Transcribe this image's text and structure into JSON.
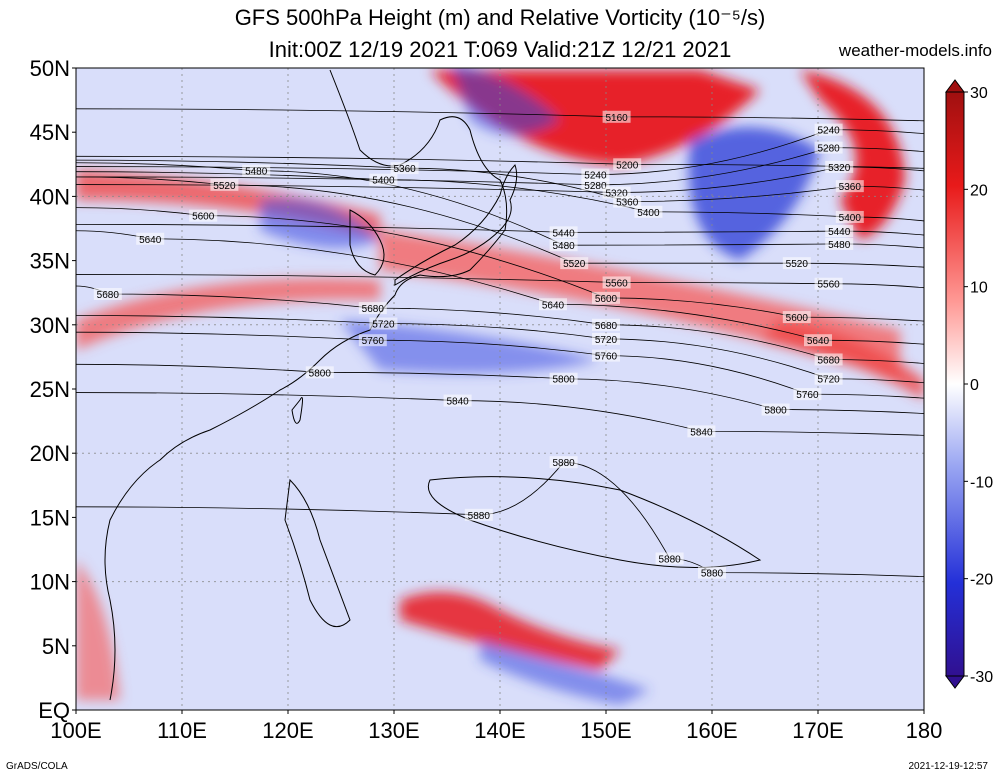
{
  "header": {
    "title_line1": "GFS 500hPa Height (m) and Relative Vorticity (10⁻⁵/s)",
    "title_line2": "Init:00Z 12/19 2021 T:069 Valid:21Z 12/21 2021",
    "site": "weather-models.info"
  },
  "footer": {
    "left": "GrADS/COLA",
    "right": "2021-12-19-12:57"
  },
  "map": {
    "lat_range": [
      0,
      50
    ],
    "lon_range": [
      100,
      180
    ],
    "lat_labels": [
      "50N",
      "45N",
      "40N",
      "35N",
      "30N",
      "25N",
      "20N",
      "15N",
      "10N",
      "5N",
      "EQ"
    ],
    "lon_labels": [
      "100E",
      "110E",
      "120E",
      "130E",
      "140E",
      "150E",
      "160E",
      "170E",
      "180"
    ],
    "background_color": "#d9defa",
    "positive_color": "#e8141e",
    "negative_color": "#2a3bd6",
    "contour_color": "#000000"
  },
  "colorbar": {
    "labels": [
      "30",
      "20",
      "10",
      "0",
      "-10",
      "-20",
      "-30"
    ],
    "stops": [
      "#a01010",
      "#e81a1a",
      "#ff9a96",
      "#ffffff",
      "#9aa6f2",
      "#2430d8",
      "#301090"
    ]
  },
  "contours": [
    {
      "value": 5160,
      "label": "5160",
      "lon": 151,
      "lat": 46.2
    },
    {
      "value": 5200,
      "label": "5200",
      "lon": 152,
      "lat": 42.5
    },
    {
      "value": 5240,
      "label": "5240",
      "lon": 149,
      "lat": 41.7
    },
    {
      "value": 5240,
      "label": "5240",
      "lon": 171,
      "lat": 45.2
    },
    {
      "value": 5280,
      "label": "5280",
      "lon": 149,
      "lat": 40.9
    },
    {
      "value": 5280,
      "label": "5280",
      "lon": 171,
      "lat": 43.8
    },
    {
      "value": 5320,
      "label": "5320",
      "lon": 151,
      "lat": 40.3
    },
    {
      "value": 5320,
      "label": "5320",
      "lon": 172,
      "lat": 42.3
    },
    {
      "value": 5360,
      "label": "5360",
      "lon": 152,
      "lat": 39.6
    },
    {
      "value": 5360,
      "label": "5360",
      "lon": 173,
      "lat": 40.8
    },
    {
      "value": 5360,
      "label": "5360",
      "lon": 131,
      "lat": 42.2
    },
    {
      "value": 5400,
      "label": "5400",
      "lon": 154,
      "lat": 38.8
    },
    {
      "value": 5400,
      "label": "5400",
      "lon": 173,
      "lat": 38.4
    },
    {
      "value": 5400,
      "label": "5400",
      "lon": 129,
      "lat": 41.3
    },
    {
      "value": 5440,
      "label": "5440",
      "lon": 146,
      "lat": 37.2
    },
    {
      "value": 5440,
      "label": "5440",
      "lon": 172,
      "lat": 37.3
    },
    {
      "value": 5480,
      "label": "5480",
      "lon": 146,
      "lat": 36.2
    },
    {
      "value": 5480,
      "label": "5480",
      "lon": 172,
      "lat": 36.3
    },
    {
      "value": 5480,
      "label": "5480",
      "lon": 117,
      "lat": 42.0
    },
    {
      "value": 5520,
      "label": "5520",
      "lon": 147,
      "lat": 34.8
    },
    {
      "value": 5520,
      "label": "5520",
      "lon": 168,
      "lat": 34.8
    },
    {
      "value": 5520,
      "label": "5520",
      "lon": 114,
      "lat": 40.9
    },
    {
      "value": 5560,
      "label": "5560",
      "lon": 151,
      "lat": 33.3
    },
    {
      "value": 5560,
      "label": "5560",
      "lon": 171,
      "lat": 33.2
    },
    {
      "value": 5600,
      "label": "5600",
      "lon": 150,
      "lat": 32.1
    },
    {
      "value": 5600,
      "label": "5600",
      "lon": 168,
      "lat": 30.6
    },
    {
      "value": 5600,
      "label": "5600",
      "lon": 112,
      "lat": 38.5
    },
    {
      "value": 5640,
      "label": "5640",
      "lon": 145,
      "lat": 31.6
    },
    {
      "value": 5640,
      "label": "5640",
      "lon": 170,
      "lat": 28.8
    },
    {
      "value": 5640,
      "label": "5640",
      "lon": 107,
      "lat": 36.7
    },
    {
      "value": 5680,
      "label": "5680",
      "lon": 128,
      "lat": 31.3
    },
    {
      "value": 5680,
      "label": "5680",
      "lon": 150,
      "lat": 30.0
    },
    {
      "value": 5680,
      "label": "5680",
      "lon": 171,
      "lat": 27.3
    },
    {
      "value": 5680,
      "label": "5680",
      "lon": 103,
      "lat": 32.4
    },
    {
      "value": 5720,
      "label": "5720",
      "lon": 129,
      "lat": 30.1
    },
    {
      "value": 5720,
      "label": "5720",
      "lon": 150,
      "lat": 28.9
    },
    {
      "value": 5720,
      "label": "5720",
      "lon": 171,
      "lat": 25.8
    },
    {
      "value": 5760,
      "label": "5760",
      "lon": 128,
      "lat": 28.8
    },
    {
      "value": 5760,
      "label": "5760",
      "lon": 150,
      "lat": 27.6
    },
    {
      "value": 5760,
      "label": "5760",
      "lon": 169,
      "lat": 24.6
    },
    {
      "value": 5800,
      "label": "5800",
      "lon": 123,
      "lat": 26.3
    },
    {
      "value": 5800,
      "label": "5800",
      "lon": 146,
      "lat": 25.8
    },
    {
      "value": 5800,
      "label": "5800",
      "lon": 166,
      "lat": 23.4
    },
    {
      "value": 5840,
      "label": "5840",
      "lon": 136,
      "lat": 24.1
    },
    {
      "value": 5840,
      "label": "5840",
      "lon": 159,
      "lat": 21.7
    },
    {
      "value": 5880,
      "label": "5880",
      "lon": 146,
      "lat": 19.3
    },
    {
      "value": 5880,
      "label": "5880",
      "lon": 138,
      "lat": 15.2
    },
    {
      "value": 5880,
      "label": "5880",
      "lon": 156,
      "lat": 11.8
    },
    {
      "value": 5880,
      "label": "5880",
      "lon": 160,
      "lat": 10.7
    }
  ]
}
